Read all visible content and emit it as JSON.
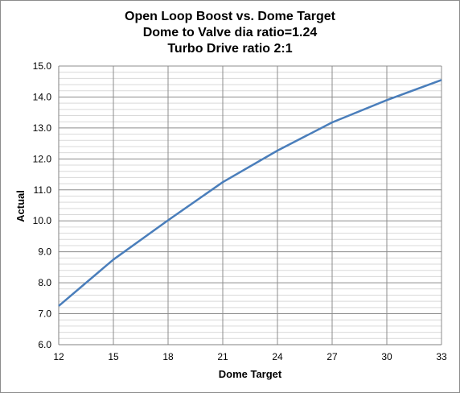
{
  "chart_data": {
    "type": "line",
    "title_lines": [
      "Open Loop Boost vs. Dome Target",
      "Dome to Valve dia ratio=1.24",
      "Turbo Drive ratio 2:1"
    ],
    "xlabel": "Dome Target",
    "ylabel": "Actual",
    "xlim": [
      12,
      33
    ],
    "ylim": [
      6.0,
      15.0
    ],
    "x_ticks": [
      "12",
      "15",
      "18",
      "21",
      "24",
      "27",
      "30",
      "33"
    ],
    "y_ticks": [
      "6.0",
      "7.0",
      "8.0",
      "9.0",
      "10.0",
      "11.0",
      "12.0",
      "13.0",
      "14.0",
      "15.0"
    ],
    "grid": true,
    "legend": "none",
    "series": [
      {
        "color": "#4a7ebb",
        "x": [
          12,
          15,
          18,
          21,
          24,
          27,
          30,
          33
        ],
        "y": [
          7.25,
          8.75,
          10.02,
          11.25,
          12.27,
          13.18,
          13.9,
          14.55
        ]
      }
    ]
  }
}
